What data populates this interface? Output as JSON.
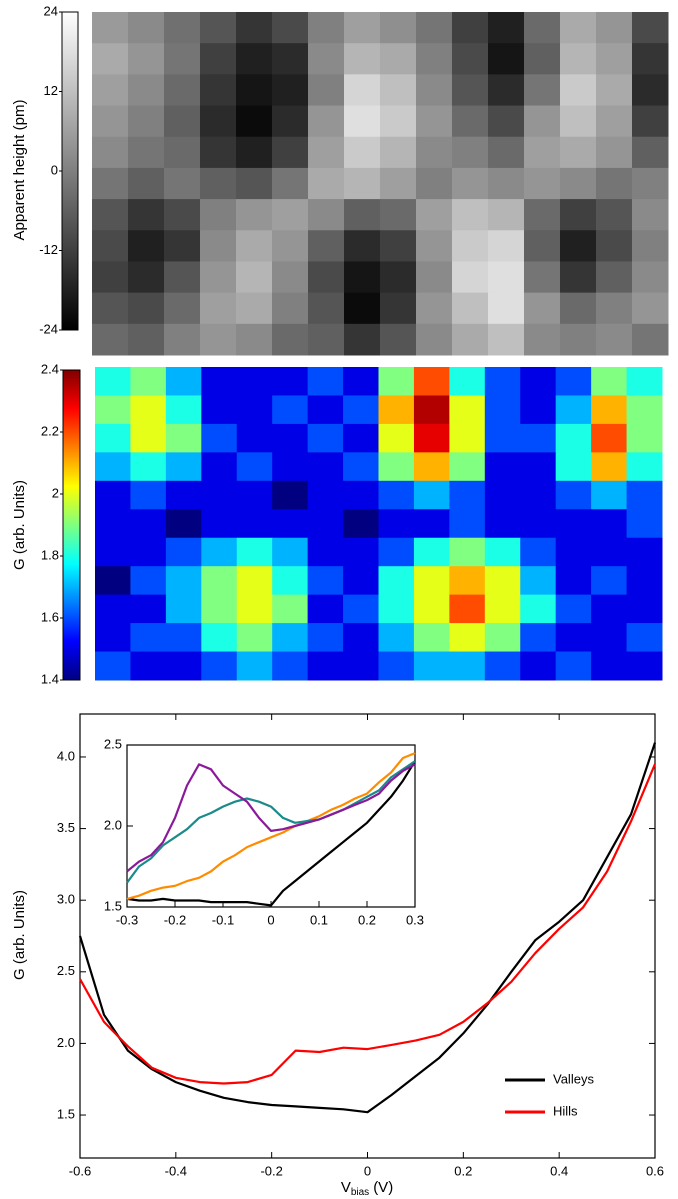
{
  "chart_data": [
    {
      "type": "heatmap",
      "colormap": "gray",
      "zlabel": "Apparent height (pm)",
      "zlim": [
        -24,
        24
      ],
      "zticks": [
        -24,
        -12,
        0,
        12,
        24
      ],
      "z": [
        [
          5,
          2,
          -3,
          -8,
          -14,
          -10,
          0,
          6,
          3,
          -2,
          -12,
          -18,
          -4,
          8,
          4,
          -10
        ],
        [
          8,
          4,
          -2,
          -12,
          -18,
          -16,
          2,
          10,
          8,
          0,
          -10,
          -20,
          -6,
          10,
          6,
          -14
        ],
        [
          6,
          2,
          -4,
          -14,
          -20,
          -18,
          0,
          16,
          12,
          2,
          -8,
          -16,
          -2,
          14,
          8,
          -16
        ],
        [
          4,
          0,
          -6,
          -16,
          -22,
          -16,
          4,
          18,
          14,
          4,
          -4,
          -10,
          4,
          12,
          6,
          -12
        ],
        [
          2,
          -2,
          -4,
          -14,
          -18,
          -12,
          6,
          14,
          10,
          2,
          0,
          -4,
          6,
          8,
          4,
          -6
        ],
        [
          -2,
          -6,
          -2,
          -6,
          -8,
          -2,
          8,
          10,
          6,
          0,
          4,
          2,
          4,
          2,
          -2,
          0
        ],
        [
          -8,
          -14,
          -10,
          0,
          4,
          6,
          2,
          -6,
          -4,
          6,
          12,
          10,
          -4,
          -12,
          -8,
          2
        ],
        [
          -10,
          -18,
          -14,
          2,
          8,
          4,
          -6,
          -16,
          -12,
          4,
          14,
          16,
          -6,
          -18,
          -10,
          0
        ],
        [
          -12,
          -16,
          -8,
          4,
          10,
          2,
          -10,
          -20,
          -16,
          2,
          16,
          18,
          -2,
          -14,
          -6,
          2
        ],
        [
          -8,
          -10,
          -4,
          6,
          8,
          0,
          -8,
          -22,
          -14,
          4,
          12,
          18,
          4,
          -4,
          0,
          4
        ],
        [
          -4,
          -6,
          0,
          4,
          2,
          -4,
          -6,
          -14,
          -8,
          2,
          8,
          12,
          2,
          0,
          2,
          -2
        ]
      ]
    },
    {
      "type": "heatmap",
      "colormap": "jet",
      "zlabel": "G (arb. Units)",
      "zlim": [
        1.4,
        2.4
      ],
      "zticks": [
        1.4,
        1.6,
        1.8,
        2,
        2.2,
        2.4
      ],
      "z": [
        [
          1.8,
          1.9,
          1.7,
          1.5,
          1.5,
          1.5,
          1.6,
          1.5,
          1.9,
          2.2,
          1.8,
          1.6,
          1.5,
          1.6,
          1.9,
          1.8
        ],
        [
          1.9,
          2.0,
          1.8,
          1.5,
          1.5,
          1.6,
          1.5,
          1.6,
          2.1,
          2.35,
          2.0,
          1.6,
          1.5,
          1.7,
          2.1,
          1.9
        ],
        [
          1.8,
          2.0,
          1.9,
          1.6,
          1.5,
          1.5,
          1.6,
          1.5,
          2.0,
          2.3,
          2.0,
          1.6,
          1.6,
          1.8,
          2.2,
          1.9
        ],
        [
          1.7,
          1.8,
          1.7,
          1.5,
          1.6,
          1.5,
          1.5,
          1.6,
          1.9,
          2.1,
          1.9,
          1.5,
          1.5,
          1.8,
          2.1,
          1.8
        ],
        [
          1.5,
          1.6,
          1.5,
          1.5,
          1.5,
          1.4,
          1.5,
          1.5,
          1.6,
          1.7,
          1.6,
          1.5,
          1.5,
          1.6,
          1.7,
          1.6
        ],
        [
          1.5,
          1.5,
          1.4,
          1.5,
          1.5,
          1.5,
          1.5,
          1.4,
          1.5,
          1.5,
          1.6,
          1.5,
          1.5,
          1.5,
          1.5,
          1.6
        ],
        [
          1.5,
          1.5,
          1.6,
          1.7,
          1.8,
          1.7,
          1.5,
          1.5,
          1.6,
          1.8,
          1.9,
          1.8,
          1.6,
          1.5,
          1.5,
          1.5
        ],
        [
          1.4,
          1.6,
          1.7,
          1.9,
          2.0,
          1.8,
          1.6,
          1.5,
          1.8,
          2.0,
          2.1,
          2.0,
          1.7,
          1.5,
          1.6,
          1.5
        ],
        [
          1.5,
          1.5,
          1.7,
          1.9,
          2.0,
          1.9,
          1.5,
          1.6,
          1.8,
          2.0,
          2.2,
          2.0,
          1.8,
          1.6,
          1.5,
          1.5
        ],
        [
          1.5,
          1.6,
          1.6,
          1.8,
          1.9,
          1.7,
          1.6,
          1.5,
          1.7,
          1.9,
          2.0,
          1.9,
          1.6,
          1.5,
          1.5,
          1.6
        ],
        [
          1.6,
          1.5,
          1.5,
          1.6,
          1.7,
          1.6,
          1.5,
          1.5,
          1.6,
          1.7,
          1.7,
          1.6,
          1.5,
          1.6,
          1.5,
          1.5
        ]
      ]
    },
    {
      "type": "line",
      "ylabel": "G (arb. Units)",
      "xlabel_symbol": "V",
      "xlabel_subscript": "bias",
      "xlabel_unit": "(V)",
      "xlim": [
        -0.6,
        0.6
      ],
      "xticks": [
        -0.6,
        -0.4,
        -0.2,
        0,
        0.2,
        0.4,
        0.6
      ],
      "ylim": [
        1.2,
        4.3
      ],
      "yticks": [
        1.5,
        {
          "value": 2,
          "label": "2.0"
        },
        2.5,
        {
          "value": 3,
          "label": "3.0"
        },
        3.5,
        {
          "value": 4,
          "label": "4.0"
        }
      ],
      "legend": "lower right",
      "x": [
        -0.6,
        -0.55,
        -0.5,
        -0.45,
        -0.4,
        -0.35,
        -0.3,
        -0.25,
        -0.2,
        -0.15,
        -0.1,
        -0.05,
        0,
        0.05,
        0.1,
        0.15,
        0.2,
        0.25,
        0.3,
        0.35,
        0.4,
        0.45,
        0.5,
        0.55,
        0.6
      ],
      "series": [
        {
          "name": "Valleys",
          "color": "#000000",
          "values": [
            2.75,
            2.2,
            1.95,
            1.82,
            1.73,
            1.67,
            1.62,
            1.59,
            1.57,
            1.56,
            1.55,
            1.54,
            1.52,
            1.64,
            1.77,
            1.9,
            2.07,
            2.27,
            2.5,
            2.72,
            2.85,
            3.0,
            3.3,
            3.6,
            4.1
          ]
        },
        {
          "name": "Hills",
          "color": "#ff0000",
          "values": [
            2.45,
            2.15,
            1.98,
            1.83,
            1.76,
            1.73,
            1.72,
            1.73,
            1.78,
            1.95,
            1.94,
            1.97,
            1.96,
            1.99,
            2.02,
            2.06,
            2.15,
            2.28,
            2.43,
            2.63,
            2.8,
            2.95,
            3.2,
            3.55,
            3.95
          ]
        }
      ],
      "inset": {
        "xlim": [
          -0.3,
          0.3
        ],
        "xticks": [
          -0.3,
          -0.2,
          -0.1,
          0,
          0.1,
          0.2,
          0.3
        ],
        "ylim": [
          1.5,
          2.5
        ],
        "yticks": [
          1.5,
          {
            "value": 2,
            "label": "2.0"
          },
          2.5
        ],
        "x": [
          -0.3,
          -0.275,
          -0.25,
          -0.225,
          -0.2,
          -0.175,
          -0.15,
          -0.125,
          -0.1,
          -0.075,
          -0.05,
          -0.025,
          0,
          0.025,
          0.05,
          0.075,
          0.1,
          0.125,
          0.15,
          0.175,
          0.2,
          0.225,
          0.25,
          0.275,
          0.3
        ],
        "series": [
          {
            "color": "#000000",
            "values": [
              1.55,
              1.54,
              1.54,
              1.55,
              1.54,
              1.54,
              1.54,
              1.53,
              1.53,
              1.53,
              1.53,
              1.52,
              1.51,
              1.6,
              1.66,
              1.72,
              1.78,
              1.84,
              1.9,
              1.96,
              2.02,
              2.1,
              2.18,
              2.28,
              2.4
            ]
          },
          {
            "color": "#ff8c00",
            "values": [
              1.55,
              1.57,
              1.6,
              1.62,
              1.63,
              1.66,
              1.68,
              1.72,
              1.78,
              1.82,
              1.87,
              1.9,
              1.93,
              1.96,
              2.0,
              2.03,
              2.06,
              2.1,
              2.13,
              2.17,
              2.2,
              2.27,
              2.33,
              2.42,
              2.45
            ]
          },
          {
            "color": "#1a8a8a",
            "values": [
              1.65,
              1.75,
              1.8,
              1.88,
              1.93,
              1.98,
              2.05,
              2.08,
              2.12,
              2.15,
              2.17,
              2.15,
              2.12,
              2.05,
              2.02,
              2.03,
              2.04,
              2.07,
              2.1,
              2.14,
              2.18,
              2.22,
              2.3,
              2.35,
              2.4
            ]
          },
          {
            "color": "#8b1a9b",
            "values": [
              1.72,
              1.78,
              1.82,
              1.9,
              2.05,
              2.25,
              2.38,
              2.35,
              2.25,
              2.2,
              2.15,
              2.05,
              1.97,
              1.98,
              2.0,
              2.02,
              2.04,
              2.07,
              2.1,
              2.13,
              2.16,
              2.2,
              2.28,
              2.34,
              2.38
            ]
          }
        ]
      }
    }
  ]
}
